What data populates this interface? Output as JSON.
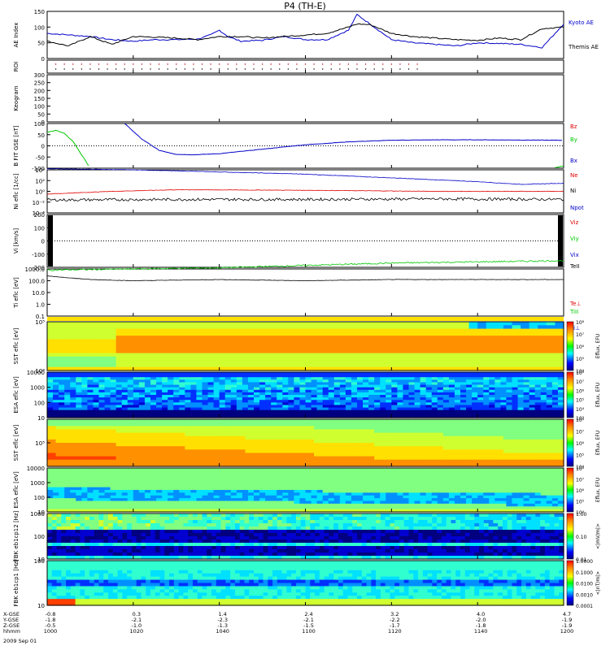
{
  "title": "P4 (TH-E)",
  "colors": {
    "kyoto": "#0000c8",
    "themis": "#000000",
    "red": "#e00000",
    "green": "#00c800",
    "blue": "#0000c8"
  },
  "chart_data": [
    {
      "type": "line",
      "name": "ae",
      "ylabel": "AE Index",
      "ylim": [
        0,
        150
      ],
      "yticks": [
        "0",
        "50",
        "100",
        "150"
      ],
      "legend": [
        "Kyoto AE",
        "Themis AE"
      ],
      "series": [
        {
          "name": "Kyoto AE",
          "x": [
            0,
            5,
            10,
            15,
            20,
            25,
            30,
            35,
            38,
            40,
            42,
            45,
            50,
            55,
            60,
            65,
            70,
            72,
            75,
            80,
            85,
            90,
            95,
            100,
            105,
            110,
            115,
            120
          ],
          "values": [
            80,
            75,
            70,
            60,
            55,
            60,
            60,
            62,
            75,
            90,
            70,
            55,
            58,
            70,
            60,
            60,
            90,
            140,
            110,
            60,
            50,
            45,
            40,
            50,
            48,
            45,
            35,
            110
          ]
        },
        {
          "name": "Themis AE",
          "x": [
            0,
            5,
            10,
            15,
            20,
            25,
            30,
            35,
            40,
            45,
            50,
            55,
            60,
            65,
            70,
            72,
            75,
            80,
            85,
            90,
            95,
            100,
            105,
            110,
            115,
            120
          ],
          "values": [
            55,
            40,
            70,
            45,
            70,
            68,
            65,
            60,
            70,
            70,
            65,
            70,
            75,
            80,
            100,
            110,
            108,
            80,
            70,
            65,
            60,
            58,
            65,
            60,
            95,
            100
          ]
        }
      ]
    },
    {
      "type": "scatter",
      "name": "roi",
      "ylabel": "ROI",
      "yticks": []
    },
    {
      "type": "line",
      "name": "keogram",
      "ylabel": "Keogram",
      "ylim": [
        0,
        300
      ],
      "yticks": [
        "0",
        "50",
        "100",
        "150",
        "200",
        "250",
        "300"
      ]
    },
    {
      "type": "line",
      "name": "bfield",
      "ylabel": "B FIT GSE [nT]",
      "ylim": [
        -100,
        100
      ],
      "yticks": [
        "-100",
        "-50",
        "0",
        "50",
        "100"
      ],
      "legend": [
        "Bz",
        "By",
        "Bx"
      ],
      "series": [
        {
          "name": "By",
          "x": [
            0,
            2,
            4,
            6,
            8,
            10
          ],
          "values": [
            60,
            70,
            55,
            20,
            -40,
            -100
          ]
        },
        {
          "name": "Bx",
          "x": [
            18,
            22,
            26,
            30,
            34,
            40,
            50,
            60,
            70,
            80,
            90,
            100,
            110,
            120
          ],
          "values": [
            100,
            30,
            -20,
            -38,
            -40,
            -35,
            -15,
            5,
            18,
            25,
            27,
            27,
            26,
            25
          ]
        }
      ]
    },
    {
      "type": "line",
      "name": "density",
      "ylabel": "Ni eflc [1/cc]",
      "yticks": [
        "10^-4",
        "10^-2",
        "10^0",
        "10^2",
        "10^4"
      ],
      "legend": [
        "Ne",
        "Ni",
        "Npot"
      ],
      "series": [
        {
          "name": "Ni",
          "x": [
            0,
            20,
            40,
            60,
            80,
            100,
            110,
            120
          ],
          "values": [
            4.2,
            4.0,
            3.6,
            3.2,
            2.5,
            1.8,
            1.3,
            1.5
          ]
        },
        {
          "name": "Ne",
          "x": [
            0,
            15,
            30,
            60,
            90,
            120
          ],
          "values": [
            -0.5,
            0.0,
            0.3,
            0.2,
            0.0,
            0.0
          ]
        },
        {
          "name": "Npot",
          "x": [
            0,
            30,
            60,
            90,
            120
          ],
          "values": [
            -1.6,
            -1.5,
            -1.5,
            -1.4,
            -1.5
          ]
        }
      ]
    },
    {
      "type": "line",
      "name": "velocity",
      "ylabel": "Vi [km/s]",
      "ylim": [
        -300,
        300
      ],
      "yticks": [
        "-200",
        "-100",
        "0",
        "100",
        "200"
      ],
      "legend": [
        "Viz",
        "Viy",
        "Vix"
      ]
    },
    {
      "type": "line",
      "name": "temperature",
      "ylabel": "Ti eflc [eV]",
      "yticks": [
        "0.1",
        "1.0",
        "10.0",
        "100.0",
        "1000.0"
      ],
      "legend": [
        "TeII",
        "Te⊥",
        "TiII",
        "Ti⊥"
      ],
      "series": [
        {
          "name": "TeII",
          "x": [
            0,
            20,
            40,
            60,
            80,
            100,
            120
          ],
          "values": [
            2.9,
            3.0,
            3.1,
            3.3,
            3.5,
            3.6,
            3.7
          ]
        },
        {
          "name": "Ti",
          "x": [
            0,
            10,
            20,
            40,
            60,
            80,
            100,
            120
          ],
          "values": [
            2.4,
            2.1,
            2.0,
            2.1,
            2.0,
            2.1,
            2.1,
            2.1
          ]
        }
      ]
    },
    {
      "type": "heatmap",
      "name": "sst-ion",
      "ylabel": "SST eflc [eV]",
      "yticks": [
        "10^6",
        "10^5"
      ],
      "cbar": [
        "10^4",
        "10^5",
        "10^6",
        "10^7",
        "10^8"
      ],
      "cbar_label": "Eflux, EFU"
    },
    {
      "type": "heatmap",
      "name": "esa-ion",
      "ylabel": "ESA eflc [eV]",
      "yticks": [
        "10",
        "100",
        "1000",
        "10000"
      ],
      "cbar": [
        "10^3",
        "10^4",
        "10^5",
        "10^6",
        "10^7",
        "10^8"
      ],
      "cbar_label": "Eflux, EFU"
    },
    {
      "type": "heatmap",
      "name": "sst-elec",
      "ylabel": "SST eflc [eV]",
      "yticks": [
        "10^5"
      ],
      "cbar": [
        "10^4",
        "10^5",
        "10^6",
        "10^7",
        "10^8"
      ],
      "cbar_label": "Eflux, EFU"
    },
    {
      "type": "heatmap",
      "name": "esa-elec",
      "ylabel": "ESA eflc [eV]",
      "yticks": [
        "10",
        "100",
        "1000",
        "10000"
      ],
      "cbar": [
        "10^4",
        "10^5",
        "10^6",
        "10^7",
        "10^8"
      ],
      "cbar_label": "Eflux, EFU"
    },
    {
      "type": "heatmap",
      "name": "fbk1",
      "ylabel": "FBK eb1cp12 [Hz]",
      "yticks": [
        "10",
        "100",
        "1000"
      ],
      "cbar": [
        "0.01",
        "0.10",
        "1.00"
      ],
      "cbar_label": "<|mV/m|>"
    },
    {
      "type": "heatmap",
      "name": "fbk2",
      "ylabel": "FBK eb1cp1 [Hz]",
      "yticks": [
        "10",
        "100"
      ],
      "cbar": [
        "0.0001",
        "0.0010",
        "0.0100",
        "0.1000",
        "1.0000"
      ],
      "cbar_label": "<|nT/m|>"
    }
  ],
  "xaxis": {
    "labels": [
      "X-GSE",
      "Y-GSE",
      "Z-GSE",
      "hhmm",
      "2009 Sep 01"
    ],
    "columns": [
      [
        "-0.8",
        "-1.8",
        "-0.5",
        "1000"
      ],
      [
        "0.3",
        "-2.1",
        "-1.0",
        "1020"
      ],
      [
        "1.4",
        "-2.3",
        "-1.3",
        "1040"
      ],
      [
        "2.4",
        "-2.1",
        "-1.5",
        "1100"
      ],
      [
        "3.2",
        "-2.2",
        "-1.7",
        "1120"
      ],
      [
        "4.0",
        "-2.0",
        "-1.8",
        "1140"
      ],
      [
        "4.7",
        "-1.9",
        "-1.9",
        "1200"
      ]
    ]
  }
}
